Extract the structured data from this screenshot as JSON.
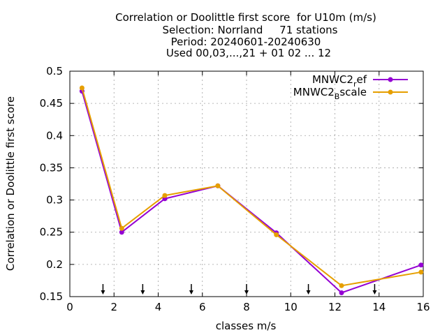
{
  "chart_data": {
    "type": "line",
    "title_lines": [
      "Correlation or Doolittle first score  for U10m (m/s)",
      "Selection: Norrland     71 stations",
      "Period: 20240601-20240630",
      "Used 00,03,...,21 + 01 02 ... 12"
    ],
    "xlabel": "classes m/s",
    "ylabel": "Correlation or Doolittle first score",
    "xlim": [
      0,
      16
    ],
    "ylim": [
      0.15,
      0.5
    ],
    "xticks": [
      "0",
      "2",
      "4",
      "6",
      "8",
      "10",
      "12",
      "14",
      "16"
    ],
    "yticks": [
      "0.15",
      "0.2",
      "0.25",
      "0.3",
      "0.35",
      "0.4",
      "0.45",
      "0.5"
    ],
    "grid": true,
    "legend_position": "top-right",
    "arrow_x": [
      1.5,
      3.3,
      5.5,
      8.0,
      10.8,
      13.8
    ],
    "series": [
      {
        "legend_base": "MNWC2",
        "legend_sub": "r",
        "legend_rest": "ef",
        "color": "#9400d3",
        "x": [
          0.55,
          2.35,
          4.3,
          6.7,
          9.35,
          12.3,
          15.9
        ],
        "y": [
          0.469,
          0.25,
          0.302,
          0.322,
          0.249,
          0.156,
          0.199
        ]
      },
      {
        "legend_base": "MNWC2",
        "legend_sub": "B",
        "legend_rest": "scale",
        "color": "#e69f00",
        "x": [
          0.55,
          2.35,
          4.3,
          6.7,
          9.35,
          12.3,
          15.9
        ],
        "y": [
          0.474,
          0.256,
          0.307,
          0.322,
          0.246,
          0.167,
          0.188
        ]
      }
    ]
  }
}
